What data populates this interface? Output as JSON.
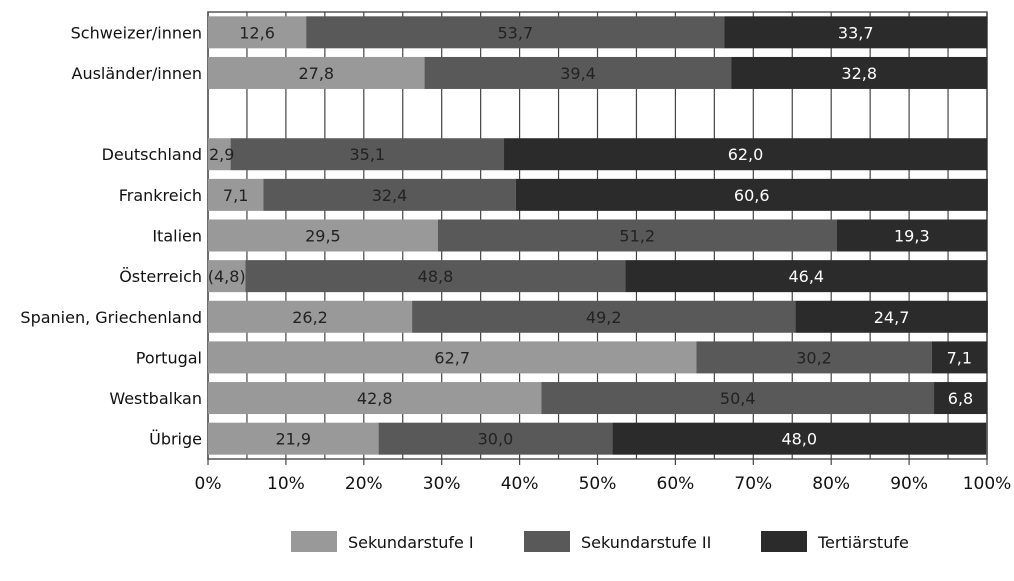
{
  "chart_data": {
    "type": "bar",
    "orientation": "horizontal",
    "stacked": true,
    "categories": [
      "Schweizer/innen",
      "Ausländer/innen",
      "",
      "Deutschland",
      "Frankreich",
      "Italien",
      "Österreich",
      "Spanien, Griechenland",
      "Portugal",
      "Westbalkan",
      "Übrige"
    ],
    "series": [
      {
        "name": "Sekundarstufe I",
        "color": "#999999",
        "values": [
          12.6,
          27.8,
          null,
          2.9,
          7.1,
          29.5,
          4.8,
          26.2,
          62.7,
          42.8,
          21.9
        ],
        "labels": [
          "12,6",
          "27,8",
          "",
          "2,9",
          "7,1",
          "29,5",
          "(4,8)",
          "26,2",
          "62,7",
          "42,8",
          "21,9"
        ]
      },
      {
        "name": "Sekundarstufe II",
        "color": "#595959",
        "values": [
          53.7,
          39.4,
          null,
          35.1,
          32.4,
          51.2,
          48.8,
          49.2,
          30.2,
          50.4,
          30.0
        ],
        "labels": [
          "53,7",
          "39,4",
          "",
          "35,1",
          "32,4",
          "51,2",
          "48,8",
          "49,2",
          "30,2",
          "50,4",
          "30,0"
        ]
      },
      {
        "name": "Tertiärstufe",
        "color": "#2b2b2b",
        "values": [
          33.7,
          32.8,
          null,
          62.0,
          60.6,
          19.3,
          46.4,
          24.7,
          7.1,
          6.8,
          48.0
        ],
        "labels": [
          "33,7",
          "32,8",
          "",
          "62,0",
          "60,6",
          "19,3",
          "46,4",
          "24,7",
          "7,1",
          "6,8",
          "48,0"
        ]
      }
    ],
    "xlim": [
      0,
      100
    ],
    "xticks": [
      "0%",
      "10%",
      "20%",
      "30%",
      "40%",
      "50%",
      "60%",
      "70%",
      "80%",
      "90%",
      "100%"
    ],
    "grid": true,
    "legend_position": "bottom"
  }
}
